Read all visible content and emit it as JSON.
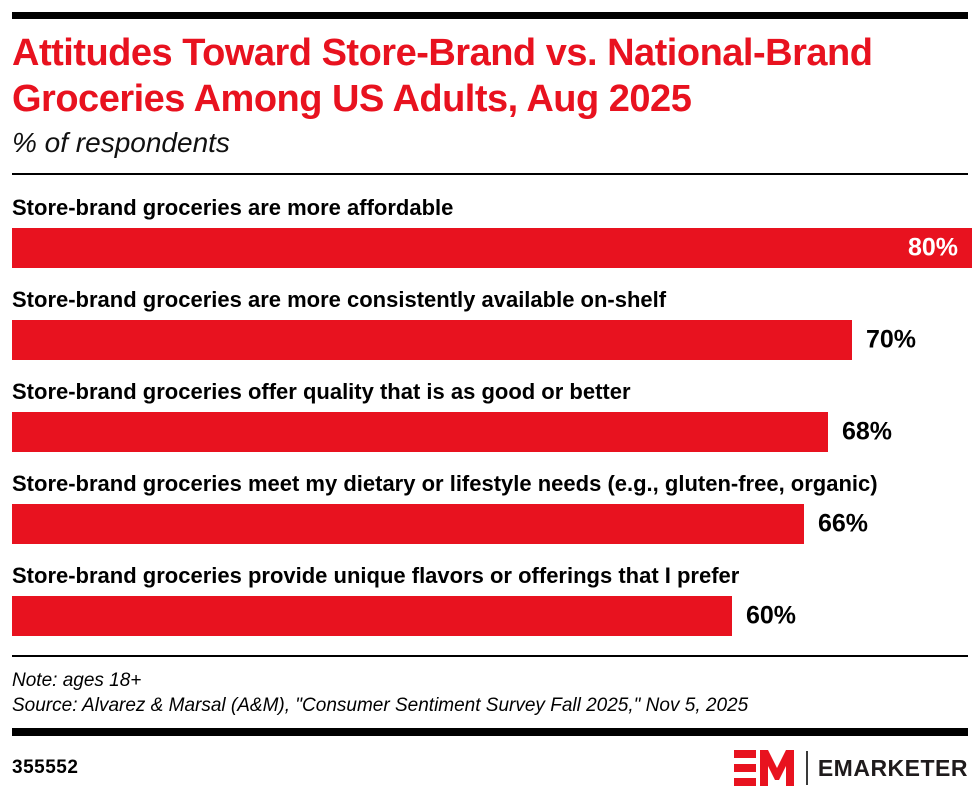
{
  "header": {
    "title_line1": "Attitudes Toward Store-Brand vs. National-Brand",
    "title_line2": "Groceries Among US Adults, Aug 2025",
    "subtitle": "% of respondents"
  },
  "chart_data": {
    "type": "bar",
    "orientation": "horizontal",
    "title": "Attitudes Toward Store-Brand vs. National-Brand Groceries Among US Adults, Aug 2025",
    "units": "% of respondents",
    "categories": [
      "Store-brand groceries are more affordable",
      "Store-brand groceries are more consistently available on-shelf",
      "Store-brand groceries offer quality that is as good or better",
      "Store-brand groceries meet my dietary or lifestyle needs (e.g., gluten-free, organic)",
      "Store-brand groceries provide unique flavors or offerings that I prefer"
    ],
    "values": [
      80,
      70,
      68,
      66,
      60
    ],
    "value_labels": [
      "80%",
      "70%",
      "68%",
      "66%",
      "60%"
    ],
    "xlim": [
      0,
      80
    ],
    "grid": false,
    "legend": false,
    "bar_color": "#e8121f",
    "value_label_color_inside": "#ffffff",
    "value_label_color_outside": "#000000"
  },
  "footer": {
    "note": "Note: ages 18+",
    "source": "Source: Alvarez & Marsal (A&M),  \"Consumer Sentiment Survey Fall 2025,\" Nov 5, 2025",
    "chart_id": "355552",
    "brand": "EMARKETER"
  },
  "colors": {
    "accent_red": "#e8121f",
    "rule_black": "#000000",
    "brand_text": "#1f1b1c"
  }
}
